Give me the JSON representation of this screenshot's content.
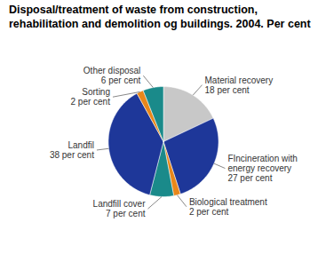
{
  "chart_data": {
    "type": "pie",
    "title": "Disposal/treatment of waste from construction,\nrehabilitation and demolition og buildings. 2004. Per cent",
    "categories": [
      "Material recovery\n18 per cent",
      "FIncineration with\nenergy recovery\n27 per cent",
      "Biological treatment\n2 per cent",
      "Landfill cover\n7 per cent",
      "Landfil\n38 per cent",
      "Sorting\n2 per cent",
      "Other disposal\n6 per cent"
    ],
    "values": [
      18,
      27,
      2,
      7,
      38,
      2,
      6
    ],
    "colors": [
      "#c8c8c8",
      "#1e3799",
      "#e8871a",
      "#1a8a8a",
      "#1e3799",
      "#e8871a",
      "#1a8a8a"
    ]
  }
}
